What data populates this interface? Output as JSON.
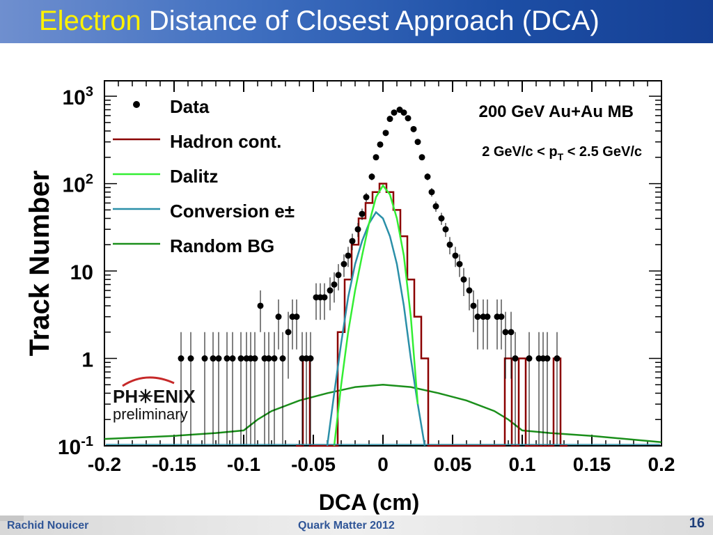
{
  "slide": {
    "title_highlight": "Electron",
    "title_rest": " Distance of Closest Approach (DCA)",
    "footer_author": "Rachid Nouicer",
    "footer_conference": "Quark Matter 2012",
    "page_number": "16"
  },
  "logo": {
    "text": "PH✳ENIX",
    "sub": "preliminary"
  },
  "colors": {
    "data": "#000000",
    "hadron": "#8b0000",
    "dalitz": "#33ee33",
    "conversion": "#2a8fa8",
    "random": "#1b8f1b"
  },
  "chart_data": {
    "type": "scatter",
    "title": "",
    "xlabel": "DCA (cm)",
    "ylabel": "Track Number",
    "xlim": [
      -0.2,
      0.2
    ],
    "ylim": [
      0.1,
      1500
    ],
    "yscale": "log",
    "grid": false,
    "legend_position": "top-left",
    "xticks": [
      -0.2,
      -0.15,
      -0.1,
      -0.05,
      0,
      0.05,
      0.1,
      0.15,
      0.2
    ],
    "xtick_labels": [
      "-0.2",
      "-0.15",
      "-0.1",
      "-0.05",
      "0",
      "0.05",
      "0.1",
      "0.15",
      "0.2"
    ],
    "ytick_labels": [
      {
        "base": "10",
        "exp": "-1",
        "value": 0.1
      },
      {
        "base": "1",
        "exp": "",
        "value": 1
      },
      {
        "base": "10",
        "exp": "",
        "value": 10
      },
      {
        "base": "10",
        "exp": "2",
        "value": 100
      },
      {
        "base": "10",
        "exp": "3",
        "value": 1000
      }
    ],
    "annotations": [
      {
        "text": "200 GeV  Au+Au MB"
      },
      {
        "text_parts": [
          "2 GeV/c < p",
          "T",
          " < 2.5 GeV/c"
        ]
      }
    ],
    "series": [
      {
        "name": "Data",
        "kind": "points",
        "x": [
          -0.145,
          -0.138,
          -0.128,
          -0.122,
          -0.118,
          -0.112,
          -0.108,
          -0.102,
          -0.098,
          -0.095,
          -0.092,
          -0.088,
          -0.085,
          -0.082,
          -0.078,
          -0.075,
          -0.072,
          -0.068,
          -0.065,
          -0.062,
          -0.058,
          -0.055,
          -0.052,
          -0.048,
          -0.045,
          -0.042,
          -0.038,
          -0.035,
          -0.032,
          -0.028,
          -0.025,
          -0.022,
          -0.018,
          -0.015,
          -0.012,
          -0.008,
          -0.005,
          -0.002,
          0.002,
          0.005,
          0.008,
          0.012,
          0.015,
          0.018,
          0.022,
          0.025,
          0.028,
          0.032,
          0.035,
          0.038,
          0.042,
          0.045,
          0.048,
          0.052,
          0.055,
          0.058,
          0.062,
          0.065,
          0.068,
          0.072,
          0.075,
          0.082,
          0.085,
          0.088,
          0.092,
          0.095,
          0.105,
          0.112,
          0.115,
          0.118,
          0.125
        ],
        "y": [
          1,
          1,
          1,
          1,
          1,
          1,
          1,
          1,
          1,
          1,
          1,
          4,
          1,
          1,
          1,
          3,
          1,
          2,
          3,
          3,
          1,
          1,
          1,
          5,
          5,
          5,
          6,
          7,
          9,
          12,
          15,
          22,
          30,
          45,
          70,
          120,
          200,
          280,
          380,
          550,
          650,
          700,
          650,
          560,
          420,
          300,
          200,
          120,
          80,
          55,
          40,
          30,
          20,
          15,
          12,
          8,
          6,
          4,
          3,
          3,
          3,
          3,
          3,
          2,
          2,
          1,
          1,
          1,
          1,
          1,
          1
        ],
        "color": "#000000"
      },
      {
        "name": "Hadron cont.",
        "kind": "step",
        "x": [
          -0.06,
          -0.055,
          -0.05,
          -0.045,
          -0.04,
          -0.035,
          -0.03,
          -0.025,
          -0.02,
          -0.015,
          -0.01,
          -0.005,
          0,
          0.005,
          0.01,
          0.015,
          0.02,
          0.025,
          0.03,
          0.035,
          0.04,
          0.045,
          0.05,
          0.055,
          0.06,
          0.065,
          0.07,
          0.075,
          0.08,
          0.085,
          0.09,
          0.095,
          0.1,
          0.105,
          0.11,
          0.115,
          0.12,
          0.125,
          0.13
        ],
        "y": [
          0.1,
          1,
          0.1,
          0.1,
          0.1,
          0.1,
          2,
          8,
          20,
          40,
          60,
          80,
          100,
          80,
          50,
          25,
          8,
          3,
          1,
          0.1,
          0.1,
          0.1,
          0.1,
          0.1,
          0.1,
          0.1,
          0.1,
          0.1,
          0.1,
          0.1,
          1,
          0.1,
          1,
          0.1,
          0.1,
          0.1,
          0.1,
          1,
          0.1
        ],
        "color": "#8b0000"
      },
      {
        "name": "Dalitz",
        "kind": "line",
        "x": [
          -0.035,
          -0.03,
          -0.025,
          -0.02,
          -0.015,
          -0.01,
          -0.005,
          0,
          0.005,
          0.01,
          0.015,
          0.02,
          0.025
        ],
        "y": [
          0.1,
          0.5,
          2,
          6,
          15,
          35,
          70,
          95,
          75,
          40,
          15,
          3,
          0.3
        ],
        "color": "#33ee33"
      },
      {
        "name": "Conversion e±",
        "kind": "line",
        "x": [
          -0.04,
          -0.035,
          -0.03,
          -0.025,
          -0.02,
          -0.015,
          -0.01,
          -0.005,
          0,
          0.005,
          0.01,
          0.015,
          0.02,
          0.025,
          0.03
        ],
        "y": [
          0.1,
          0.4,
          1.5,
          5,
          12,
          22,
          35,
          47,
          40,
          25,
          12,
          4,
          1,
          0.3,
          0.1
        ],
        "color": "#2a8fa8"
      },
      {
        "name": "Random BG",
        "kind": "line",
        "x": [
          -0.2,
          -0.15,
          -0.12,
          -0.1,
          -0.09,
          -0.08,
          -0.06,
          -0.04,
          -0.02,
          0,
          0.02,
          0.04,
          0.06,
          0.08,
          0.09,
          0.1,
          0.12,
          0.15,
          0.2
        ],
        "y": [
          0.12,
          0.13,
          0.14,
          0.15,
          0.2,
          0.25,
          0.33,
          0.4,
          0.47,
          0.5,
          0.47,
          0.4,
          0.33,
          0.25,
          0.2,
          0.15,
          0.14,
          0.13,
          0.11
        ],
        "color": "#1b8f1b"
      }
    ]
  }
}
